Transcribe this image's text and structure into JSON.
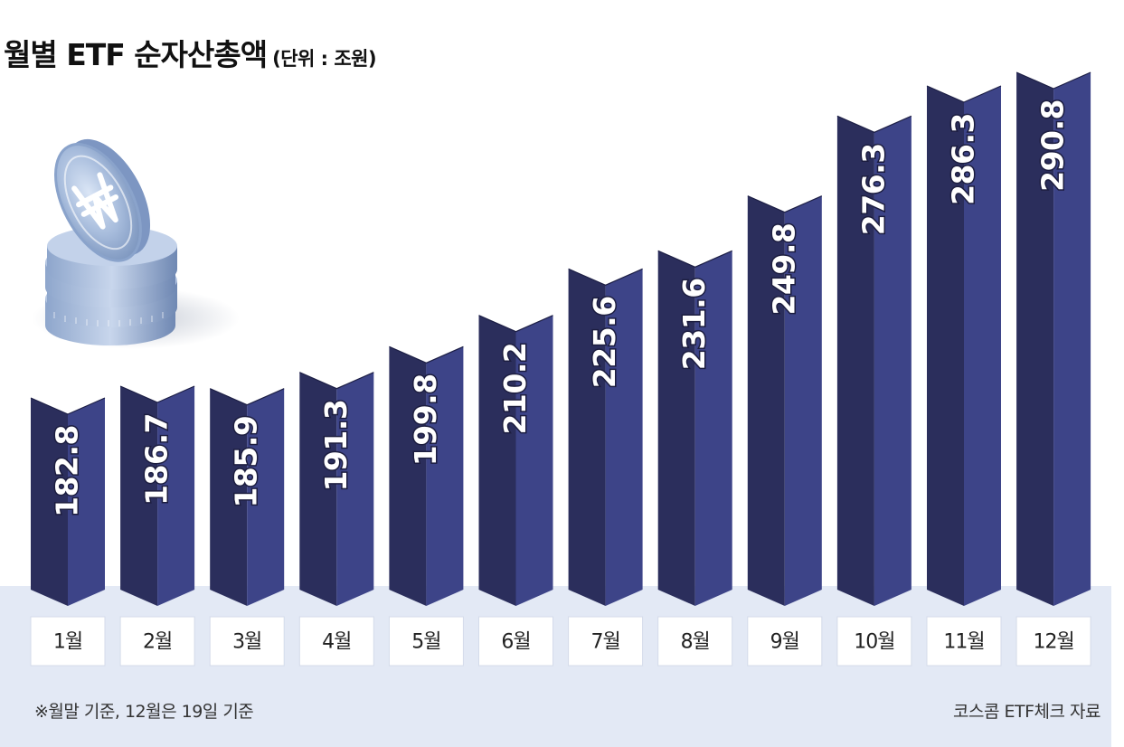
{
  "header": {
    "title": "월별 ETF 순자산총액",
    "unit": "(단위 : 조원)"
  },
  "footer": {
    "note": "※월말 기준, 12월은 19일 기준",
    "source": "코스콤 ETF체크 자료"
  },
  "colors": {
    "bar_front": "#2b2e5c",
    "bar_side": "#3d4488",
    "base_panel": "#e3e9f5",
    "label_box": "#ffffff",
    "value_text": "#ffffff"
  },
  "decoration": {
    "icon": "won-coin-stack-icon"
  },
  "chart_data": {
    "type": "bar",
    "categories": [
      "1월",
      "2월",
      "3월",
      "4월",
      "5월",
      "6월",
      "7월",
      "8월",
      "9월",
      "10월",
      "11월",
      "12월"
    ],
    "values": [
      182.8,
      186.7,
      185.9,
      191.3,
      199.8,
      210.2,
      225.6,
      231.6,
      249.8,
      276.3,
      286.3,
      290.8
    ],
    "value_labels": [
      "182.8",
      "186.7",
      "185.9",
      "191.3",
      "199.8",
      "210.2",
      "225.6",
      "231.6",
      "249.8",
      "276.3",
      "286.3",
      "290.8"
    ],
    "title": "월별 ETF 순자산총액",
    "unit": "조원",
    "grid": false,
    "legend": "none"
  }
}
